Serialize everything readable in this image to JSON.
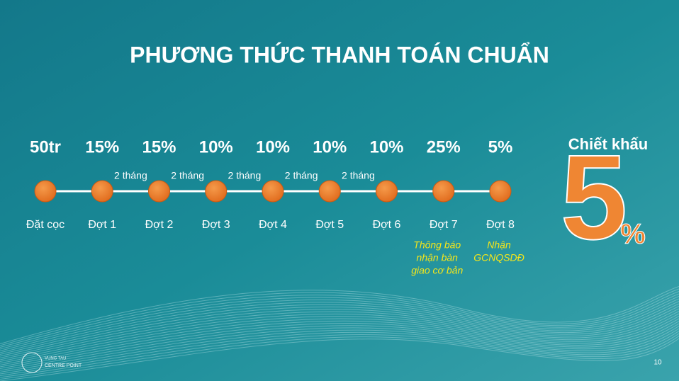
{
  "title": "PHƯƠNG THỨC THANH TOÁN CHUẨN",
  "steps": [
    {
      "amount": "50tr",
      "label": "Đặt cọc"
    },
    {
      "amount": "15%",
      "label": "Đợt 1"
    },
    {
      "amount": "15%",
      "label": "Đợt 2"
    },
    {
      "amount": "10%",
      "label": "Đợt 3"
    },
    {
      "amount": "10%",
      "label": "Đợt 4"
    },
    {
      "amount": "10%",
      "label": "Đợt 5"
    },
    {
      "amount": "10%",
      "label": "Đợt 6"
    },
    {
      "amount": "25%",
      "label": "Đợt 7",
      "note": [
        "Thông báo",
        "nhận bàn",
        "giao cơ bản"
      ]
    },
    {
      "amount": "5%",
      "label": "Đợt 8",
      "note": [
        "Nhận",
        "GCNQSDĐ"
      ]
    }
  ],
  "intervals": [
    "2 tháng",
    "2 tháng",
    "2 tháng",
    "2 tháng",
    "2 tháng"
  ],
  "discount": {
    "label": "Chiết khấu",
    "value": "5",
    "unit": "%"
  },
  "logo": {
    "line1": "VUNG TAU",
    "line2": "CENTRE POINT"
  },
  "page_number": 10
}
